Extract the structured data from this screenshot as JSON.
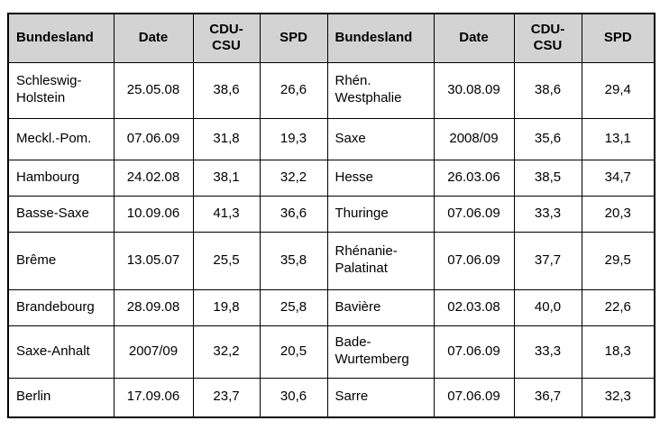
{
  "colors": {
    "header_background": "#d3d3d3",
    "border": "#000000",
    "text": "#000000",
    "page_background": "#ffffff"
  },
  "table": {
    "columns": [
      "Bundesland",
      "Date",
      "CDU-CSU",
      "SPD",
      "Bundesland",
      "Date",
      "CDU-CSU",
      "SPD"
    ],
    "rows": [
      [
        "Schleswig-Holstein",
        "25.05.08",
        "38,6",
        "26,6",
        "Rhén. Westphalie",
        "30.08.09",
        "38,6",
        "29,4"
      ],
      [
        "Meckl.-Pom.",
        "07.06.09",
        "31,8",
        "19,3",
        "Saxe",
        "2008/09",
        "35,6",
        "13,1"
      ],
      [
        "Hambourg",
        "24.02.08",
        "38,1",
        "32,2",
        "Hesse",
        "26.03.06",
        "38,5",
        "34,7"
      ],
      [
        "Basse-Saxe",
        "10.09.06",
        "41,3",
        "36,6",
        "Thuringe",
        "07.06.09",
        "33,3",
        "20,3"
      ],
      [
        "Brême",
        "13.05.07",
        "25,5",
        "35,8",
        "Rhénanie-Palatinat",
        "07.06.09",
        "37,7",
        "29,5"
      ],
      [
        "Brandebourg",
        "28.09.08",
        "19,8",
        "25,8",
        "Bavière",
        "02.03.08",
        "40,0",
        "22,6"
      ],
      [
        "Saxe-Anhalt",
        "2007/09",
        "32,2",
        "20,5",
        "Bade-Wurtemberg",
        "07.06.09",
        "33,3",
        "18,3"
      ],
      [
        "Berlin",
        "17.09.06",
        "23,7",
        "30,6",
        "Sarre",
        "07.06.09",
        "36,7",
        "32,3"
      ]
    ]
  }
}
